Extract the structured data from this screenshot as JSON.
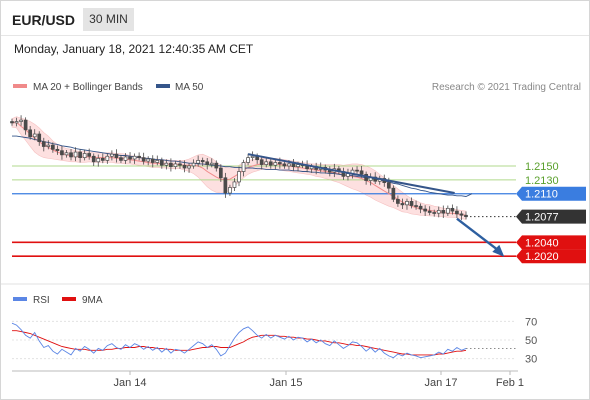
{
  "header": {
    "symbol": "EUR/USD",
    "timeframe": "30 MIN",
    "datetime": "Monday, January 18, 2021 12:40:35 AM CET"
  },
  "legend": {
    "ma20": "MA 20 + Bollinger Bands",
    "ma50": "MA 50",
    "credit": "Research © 2021 Trading Central",
    "rsi": "RSI",
    "rsi_ma": "9MA"
  },
  "colors": {
    "candle": "#4a4a4a",
    "ma20": "#f08a8a",
    "bollinger_fill": "#fde0e0",
    "ma50": "#35558a",
    "resistance": "#b0d98c",
    "pivot": "#3a7de0",
    "support": "#e01010",
    "price_tag": "#333333",
    "rsi": "#5b86e5",
    "rsi_ma": "#e01010",
    "trendline": "#35558a",
    "arrow": "#2d5fa0"
  },
  "chart_data": [
    {
      "type": "candlestick",
      "title": "EUR/USD",
      "ylim": [
        1.198,
        1.2245
      ],
      "x_ticks": [
        "Jan 14",
        "Jan 15",
        "Jan 17",
        "Feb 1"
      ],
      "levels": {
        "resistance": [
          1.215,
          1.213
        ],
        "pivot": 1.211,
        "support": [
          1.204,
          1.202
        ],
        "last_price": 1.2077
      },
      "level_labels": {
        "r1": "1.2150",
        "r2": "1.2130",
        "pivot": "1.2110",
        "last": "1.2077",
        "s1": "1.2040",
        "s2": "1.2020"
      },
      "close_series": [
        1.2212,
        1.2214,
        1.2216,
        1.2202,
        1.2192,
        1.2196,
        1.2185,
        1.2178,
        1.218,
        1.2174,
        1.2172,
        1.2166,
        1.2169,
        1.2163,
        1.217,
        1.2162,
        1.2168,
        1.2164,
        1.2156,
        1.2161,
        1.2158,
        1.2164,
        1.2167,
        1.2162,
        1.2158,
        1.2163,
        1.216,
        1.2164,
        1.2162,
        1.2157,
        1.216,
        1.2155,
        1.2158,
        1.2151,
        1.2154,
        1.2149,
        1.2153,
        1.2151,
        1.2147,
        1.215,
        1.2154,
        1.2158,
        1.2156,
        1.2152,
        1.2154,
        1.2147,
        1.2133,
        1.2111,
        1.2119,
        1.2127,
        1.2142,
        1.2155,
        1.2162,
        1.2164,
        1.2159,
        1.2152,
        1.2156,
        1.2151,
        1.2155,
        1.2153,
        1.215,
        1.2153,
        1.2149,
        1.2152,
        1.2151,
        1.2146,
        1.2149,
        1.2145,
        1.2148,
        1.2144,
        1.2141,
        1.2146,
        1.2142,
        1.2135,
        1.2139,
        1.2144,
        1.2143,
        1.2138,
        1.2129,
        1.2134,
        1.2128,
        1.2132,
        1.2126,
        1.2118,
        1.2102,
        1.2096,
        1.2094,
        1.2099,
        1.2093,
        1.2092,
        1.2088,
        1.2085,
        1.2083,
        1.2082,
        1.2086,
        1.2082,
        1.2089,
        1.2085,
        1.2081,
        1.2079,
        1.2077
      ],
      "ma20_series": [
        1.2212,
        1.2213,
        1.2207,
        1.2202,
        1.2196,
        1.219,
        1.2185,
        1.218,
        1.2177,
        1.2173,
        1.217,
        1.2168,
        1.2166,
        1.2165,
        1.2164,
        1.2163,
        1.2163,
        1.2163,
        1.2162,
        1.2162,
        1.2162,
        1.2162,
        1.2162,
        1.2161,
        1.2161,
        1.216,
        1.2159,
        1.2158,
        1.2157,
        1.2156,
        1.2155,
        1.2154,
        1.2154,
        1.2153,
        1.2153,
        1.2152,
        1.2152,
        1.2152,
        1.2151,
        1.2151,
        1.2151,
        1.215,
        1.2147,
        1.2142,
        1.2138,
        1.2134,
        1.2131,
        1.213,
        1.2131,
        1.2135,
        1.2139,
        1.2144,
        1.2148,
        1.215,
        1.2152,
        1.2153,
        1.2153,
        1.2153,
        1.2153,
        1.2152,
        1.2151,
        1.215,
        1.2149,
        1.2148,
        1.2147,
        1.2146,
        1.2145,
        1.2144,
        1.2143,
        1.2142,
        1.2141,
        1.214,
        1.2139,
        1.2137,
        1.2136,
        1.2135,
        1.2134,
        1.2132,
        1.2129,
        1.2126,
        1.2122,
        1.2118,
        1.2114,
        1.211,
        1.2106,
        1.2102,
        1.2098,
        1.2095,
        1.2092,
        1.209,
        1.2088,
        1.2087,
        1.2086,
        1.2085,
        1.2084,
        1.2083,
        1.2082,
        1.2082,
        1.2081,
        1.208,
        1.2079
      ],
      "bb_width_series": [
        0.0006,
        0.0008,
        0.0012,
        0.0015,
        0.0018,
        0.002,
        0.002,
        0.0018,
        0.0016,
        0.0013,
        0.0011,
        0.001,
        0.0009,
        0.0009,
        0.0008,
        0.0008,
        0.0008,
        0.0007,
        0.0007,
        0.0007,
        0.0007,
        0.0007,
        0.0007,
        0.0007,
        0.0007,
        0.0007,
        0.0006,
        0.0006,
        0.0006,
        0.0006,
        0.0006,
        0.0006,
        0.0006,
        0.0006,
        0.0006,
        0.0006,
        0.0006,
        0.0006,
        0.0007,
        0.0009,
        0.0012,
        0.0016,
        0.002,
        0.0022,
        0.0023,
        0.0022,
        0.002,
        0.0018,
        0.0016,
        0.0014,
        0.0012,
        0.0011,
        0.001,
        0.0009,
        0.0009,
        0.0008,
        0.0008,
        0.0008,
        0.0008,
        0.0008,
        0.0008,
        0.0008,
        0.0008,
        0.0008,
        0.0008,
        0.0008,
        0.0008,
        0.0009,
        0.0009,
        0.001,
        0.0011,
        0.0012,
        0.0013,
        0.0014,
        0.0016,
        0.0018,
        0.0019,
        0.002,
        0.0021,
        0.0021,
        0.0021,
        0.002,
        0.0019,
        0.0018,
        0.0016,
        0.0015,
        0.0014,
        0.0012,
        0.0011,
        0.001,
        0.0009,
        0.0008,
        0.0008,
        0.0007,
        0.0007,
        0.0006,
        0.0006,
        0.0006,
        0.0006,
        0.0006,
        0.0006
      ],
      "ma50_series": [
        1.2193,
        1.2193,
        1.2192,
        1.2191,
        1.219,
        1.2188,
        1.2187,
        1.2185,
        1.2184,
        1.2182,
        1.2181,
        1.2179,
        1.2178,
        1.2177,
        1.2175,
        1.2174,
        1.2173,
        1.2172,
        1.2171,
        1.217,
        1.2169,
        1.2168,
        1.2167,
        1.2166,
        1.2165,
        1.2165,
        1.2164,
        1.2163,
        1.2162,
        1.2161,
        1.2161,
        1.216,
        1.2159,
        1.2159,
        1.2158,
        1.2157,
        1.2157,
        1.2156,
        1.2155,
        1.2154,
        1.2154,
        1.2153,
        1.2153,
        1.2152,
        1.2151,
        1.2151,
        1.215,
        1.2149,
        1.2149,
        1.2148,
        1.2148,
        1.2147,
        1.2147,
        1.2147,
        1.2146,
        1.2146,
        1.2145,
        1.2145,
        1.2145,
        1.2144,
        1.2144,
        1.2144,
        1.2143,
        1.2143,
        1.2142,
        1.2142,
        1.2141,
        1.2141,
        1.214,
        1.214,
        1.2139,
        1.2139,
        1.2138,
        1.2137,
        1.2137,
        1.2136,
        1.2135,
        1.2134,
        1.2133,
        1.2132,
        1.2131,
        1.213,
        1.2128,
        1.2127,
        1.2125,
        1.2124,
        1.2122,
        1.212,
        1.2118,
        1.2117,
        1.2115,
        1.2114,
        1.2112,
        1.2111,
        1.211,
        1.2109,
        1.2108,
        1.2108,
        1.2107,
        1.2107,
        1.2106
      ],
      "trendline": {
        "start": [
          0.52,
          1.2167
        ],
        "end": [
          0.975,
          1.2111
        ]
      },
      "forecast_arrow": {
        "start": [
          0.98,
          1.2074
        ],
        "end": [
          1.08,
          1.2022
        ]
      }
    },
    {
      "type": "line",
      "title": "RSI",
      "ylim": [
        20,
        80
      ],
      "y_ticks": [
        "70",
        "50",
        "30"
      ],
      "x_ticks": [
        "Jan 14",
        "Jan 15",
        "Jan 17",
        "Feb 1"
      ],
      "series": [
        {
          "name": "RSI",
          "values": [
            68,
            66,
            61,
            55,
            52,
            58,
            49,
            42,
            44,
            38,
            35,
            40,
            37,
            34,
            41,
            38,
            43,
            40,
            36,
            41,
            39,
            44,
            46,
            42,
            40,
            45,
            42,
            46,
            44,
            40,
            43,
            39,
            42,
            37,
            41,
            36,
            40,
            39,
            36,
            40,
            44,
            48,
            46,
            42,
            45,
            40,
            33,
            36,
            44,
            52,
            58,
            62,
            64,
            60,
            55,
            52,
            56,
            52,
            55,
            53,
            51,
            54,
            50,
            53,
            52,
            48,
            51,
            47,
            50,
            46,
            44,
            49,
            45,
            41,
            44,
            48,
            47,
            43,
            38,
            42,
            37,
            41,
            36,
            33,
            31,
            35,
            33,
            36,
            34,
            33,
            31,
            32,
            33,
            34,
            37,
            35,
            40,
            38,
            42,
            39,
            41
          ]
        },
        {
          "name": "9MA",
          "values": [
            60,
            60,
            59,
            58,
            57,
            55,
            53,
            51,
            49,
            47,
            45,
            43,
            42,
            41,
            40,
            40,
            40,
            39,
            39,
            39,
            39,
            40,
            40,
            41,
            41,
            42,
            42,
            42,
            43,
            43,
            42,
            42,
            41,
            41,
            40,
            40,
            39,
            39,
            39,
            39,
            40,
            41,
            42,
            42,
            43,
            43,
            42,
            42,
            42,
            44,
            46,
            48,
            51,
            53,
            54,
            55,
            55,
            55,
            55,
            54,
            54,
            53,
            53,
            52,
            52,
            51,
            51,
            50,
            49,
            49,
            48,
            47,
            47,
            46,
            45,
            45,
            44,
            44,
            43,
            42,
            41,
            40,
            39,
            38,
            37,
            36,
            35,
            35,
            34,
            34,
            34,
            34,
            34,
            34,
            35,
            35,
            36,
            37,
            38,
            38,
            39
          ]
        }
      ]
    }
  ]
}
